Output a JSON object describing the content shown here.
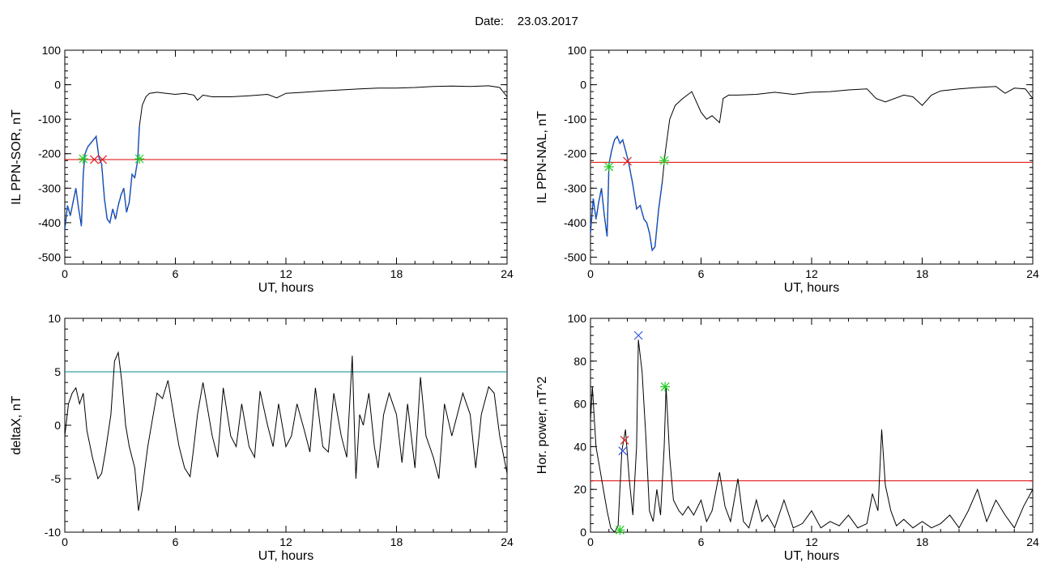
{
  "header": {
    "date_label": "Date:",
    "date_value": "23.03.2017"
  },
  "colors": {
    "axis": "#000000",
    "trace": "#000000",
    "trace_highlight": "#1f5fd6",
    "threshold_red": "#e00000",
    "threshold_teal": "#0a8a8a",
    "marker_green": "#22cc22",
    "marker_red": "#dd2222",
    "marker_blue": "#3355dd"
  },
  "chart_data": [
    {
      "type": "line",
      "xlabel": "UT, hours",
      "ylabel": "IL PPN-SOR, nT",
      "xlim": [
        0,
        24
      ],
      "ylim": [
        -520,
        100
      ],
      "xticks": [
        0,
        6,
        12,
        18,
        24
      ],
      "xtick_labels": [
        "0",
        "6",
        "12",
        "18",
        "24"
      ],
      "yticks": [
        100,
        0,
        -100,
        -200,
        -300,
        -400,
        -500
      ],
      "ytick_labels": [
        "100",
        "0",
        "-100",
        "-200",
        "-300",
        "-400",
        "-500"
      ],
      "threshold": {
        "value": -217,
        "color": "red"
      },
      "highlight_range": [
        0,
        4.1
      ],
      "series": [
        {
          "x": [
            0,
            0.15,
            0.3,
            0.45,
            0.6,
            0.75,
            0.9,
            1.0,
            1.1,
            1.25,
            1.4,
            1.55,
            1.7,
            1.85,
            2.0,
            2.15,
            2.3,
            2.45,
            2.6,
            2.75,
            2.9,
            3.05,
            3.2,
            3.35,
            3.5,
            3.65,
            3.8,
            3.95,
            4.05,
            4.2,
            4.4,
            4.6,
            5,
            5.5,
            6,
            6.5,
            7,
            7.2,
            7.5,
            8,
            9,
            10,
            11,
            11.5,
            12,
            13,
            14,
            15,
            16,
            17,
            18,
            19,
            20,
            21,
            22,
            23,
            23.6,
            24
          ],
          "y": [
            -420,
            -350,
            -380,
            -340,
            -300,
            -360,
            -410,
            -260,
            -200,
            -180,
            -170,
            -160,
            -150,
            -210,
            -230,
            -330,
            -390,
            -400,
            -360,
            -390,
            -350,
            -320,
            -300,
            -370,
            -340,
            -260,
            -270,
            -220,
            -120,
            -60,
            -35,
            -25,
            -22,
            -25,
            -28,
            -25,
            -30,
            -45,
            -30,
            -35,
            -35,
            -32,
            -28,
            -38,
            -25,
            -22,
            -18,
            -15,
            -12,
            -10,
            -10,
            -8,
            -5,
            -4,
            -5,
            -3,
            -8,
            -35
          ]
        }
      ],
      "markers": [
        {
          "x": 1.0,
          "y": -215,
          "color": "green",
          "symbol": "asterisk"
        },
        {
          "x": 1.6,
          "y": -217,
          "color": "red",
          "symbol": "x"
        },
        {
          "x": 2.05,
          "y": -217,
          "color": "red",
          "symbol": "x"
        },
        {
          "x": 4.05,
          "y": -215,
          "color": "green",
          "symbol": "asterisk"
        }
      ]
    },
    {
      "type": "line",
      "xlabel": "UT, hours",
      "ylabel": "IL PPN-NAL, nT",
      "xlim": [
        0,
        24
      ],
      "ylim": [
        -520,
        100
      ],
      "xticks": [
        0,
        6,
        12,
        18,
        24
      ],
      "xtick_labels": [
        "0",
        "6",
        "12",
        "18",
        "24"
      ],
      "yticks": [
        100,
        0,
        -100,
        -200,
        -300,
        -400,
        -500
      ],
      "ytick_labels": [
        "100",
        "0",
        "-100",
        "-200",
        "-300",
        "-400",
        "-500"
      ],
      "threshold": {
        "value": -225,
        "color": "red"
      },
      "highlight_range": [
        0,
        4.0
      ],
      "series": [
        {
          "x": [
            0,
            0.15,
            0.3,
            0.45,
            0.6,
            0.75,
            0.9,
            1.0,
            1.15,
            1.3,
            1.45,
            1.6,
            1.75,
            1.9,
            2.05,
            2.3,
            2.5,
            2.7,
            2.9,
            3.05,
            3.2,
            3.35,
            3.5,
            3.7,
            3.9,
            4.05,
            4.3,
            4.6,
            5,
            5.5,
            6,
            6.3,
            6.6,
            7,
            7.2,
            7.5,
            8,
            9,
            10,
            11,
            12,
            13,
            14,
            15,
            15.5,
            16,
            17,
            17.5,
            18,
            18.5,
            19,
            20,
            21,
            22,
            22.5,
            23,
            23.6,
            24
          ],
          "y": [
            -430,
            -330,
            -390,
            -340,
            -300,
            -380,
            -440,
            -230,
            -190,
            -160,
            -150,
            -170,
            -160,
            -190,
            -220,
            -290,
            -360,
            -350,
            -390,
            -400,
            -430,
            -480,
            -470,
            -360,
            -280,
            -200,
            -100,
            -60,
            -40,
            -20,
            -80,
            -100,
            -90,
            -110,
            -40,
            -30,
            -30,
            -28,
            -22,
            -28,
            -22,
            -20,
            -15,
            -12,
            -40,
            -50,
            -30,
            -35,
            -60,
            -30,
            -18,
            -12,
            -8,
            -5,
            -25,
            -10,
            -12,
            -40
          ]
        }
      ],
      "markers": [
        {
          "x": 1.0,
          "y": -238,
          "color": "green",
          "symbol": "asterisk"
        },
        {
          "x": 2.0,
          "y": -222,
          "color": "red",
          "symbol": "x"
        },
        {
          "x": 4.0,
          "y": -220,
          "color": "green",
          "symbol": "asterisk"
        }
      ]
    },
    {
      "type": "line",
      "xlabel": "UT, hours",
      "ylabel": "deltaX, nT",
      "xlim": [
        0,
        24
      ],
      "ylim": [
        -10,
        10
      ],
      "xticks": [
        0,
        6,
        12,
        18,
        24
      ],
      "xtick_labels": [
        "0",
        "6",
        "12",
        "18",
        "24"
      ],
      "yticks": [
        10,
        5,
        0,
        -5,
        -10
      ],
      "ytick_labels": [
        "10",
        "5",
        "0",
        "-5",
        "-10"
      ],
      "threshold": {
        "value": 5,
        "color": "teal"
      },
      "highlight_range": null,
      "series": [
        {
          "x": [
            0,
            0.2,
            0.4,
            0.6,
            0.8,
            1.0,
            1.2,
            1.5,
            1.8,
            2.0,
            2.2,
            2.5,
            2.7,
            2.9,
            3.1,
            3.3,
            3.5,
            3.8,
            4.0,
            4.2,
            4.5,
            4.8,
            5.0,
            5.3,
            5.6,
            6.0,
            6.2,
            6.5,
            6.8,
            7.0,
            7.2,
            7.5,
            7.8,
            8.0,
            8.3,
            8.6,
            9.0,
            9.3,
            9.6,
            10.0,
            10.3,
            10.6,
            11.0,
            11.3,
            11.6,
            12.0,
            12.3,
            12.6,
            13.0,
            13.3,
            13.6,
            14.0,
            14.3,
            14.6,
            15.0,
            15.3,
            15.6,
            15.8,
            16.0,
            16.2,
            16.5,
            16.8,
            17.0,
            17.3,
            17.6,
            18.0,
            18.3,
            18.6,
            19.0,
            19.3,
            19.6,
            20.0,
            20.3,
            20.6,
            21.0,
            21.3,
            21.6,
            22.0,
            22.3,
            22.6,
            23.0,
            23.3,
            23.6,
            24.0
          ],
          "y": [
            -1,
            2,
            3,
            3.5,
            2,
            3,
            -0.5,
            -3,
            -5,
            -4.5,
            -2.5,
            1,
            6,
            6.8,
            4,
            0,
            -2,
            -4,
            -8,
            -6,
            -2,
            1,
            3,
            2.5,
            4.2,
            0,
            -2,
            -4,
            -4.8,
            -2,
            1,
            4,
            1,
            -1,
            -3,
            3.5,
            -1,
            -2,
            2,
            -2,
            -3,
            3.2,
            0,
            -2,
            2,
            -2,
            -1,
            2,
            -0.5,
            -2.5,
            3.5,
            -2,
            -2.5,
            3,
            -1,
            -3,
            6.5,
            -5,
            1,
            0,
            3,
            -2,
            -4,
            1,
            3,
            1,
            -3.5,
            2,
            -4,
            4.5,
            -1,
            -3,
            -5,
            2,
            -1,
            1,
            3,
            1,
            -4,
            1,
            3.6,
            3,
            -1,
            -4.5
          ]
        }
      ],
      "markers": []
    },
    {
      "type": "line",
      "xlabel": "UT, hours",
      "ylabel": "Hor. power, nT^2",
      "xlim": [
        0,
        24
      ],
      "ylim": [
        0,
        100
      ],
      "xticks": [
        0,
        6,
        12,
        18,
        24
      ],
      "xtick_labels": [
        "0",
        "6",
        "12",
        "18",
        "24"
      ],
      "yticks": [
        100,
        80,
        60,
        40,
        20,
        0
      ],
      "ytick_labels": [
        "100",
        "80",
        "60",
        "40",
        "20",
        "0"
      ],
      "threshold": {
        "value": 24,
        "color": "red"
      },
      "highlight_range": null,
      "series": [
        {
          "x": [
            0,
            0.1,
            0.3,
            0.5,
            0.7,
            0.9,
            1.1,
            1.3,
            1.5,
            1.7,
            1.9,
            2.1,
            2.3,
            2.5,
            2.6,
            2.8,
            3.0,
            3.2,
            3.4,
            3.6,
            3.8,
            4.0,
            4.1,
            4.3,
            4.5,
            4.8,
            5.0,
            5.3,
            5.6,
            6.0,
            6.3,
            6.6,
            7.0,
            7.3,
            7.6,
            8.0,
            8.3,
            8.6,
            9.0,
            9.3,
            9.6,
            10.0,
            10.5,
            11.0,
            11.5,
            12.0,
            12.5,
            13.0,
            13.5,
            14.0,
            14.5,
            15.0,
            15.3,
            15.6,
            15.8,
            16.0,
            16.3,
            16.6,
            17.0,
            17.5,
            18.0,
            18.5,
            19.0,
            19.5,
            20.0,
            20.5,
            21.0,
            21.5,
            22.0,
            22.5,
            23.0,
            23.5,
            24.0
          ],
          "y": [
            52,
            68,
            40,
            30,
            20,
            10,
            2,
            0,
            3,
            38,
            48,
            25,
            8,
            40,
            90,
            75,
            45,
            10,
            5,
            20,
            8,
            40,
            68,
            35,
            15,
            10,
            8,
            12,
            8,
            15,
            5,
            10,
            28,
            12,
            5,
            25,
            5,
            2,
            15,
            5,
            8,
            2,
            15,
            2,
            4,
            10,
            2,
            5,
            3,
            8,
            2,
            4,
            18,
            10,
            48,
            22,
            10,
            3,
            6,
            2,
            5,
            2,
            4,
            8,
            2,
            10,
            20,
            5,
            15,
            8,
            2,
            12,
            20
          ]
        }
      ],
      "markers": [
        {
          "x": 1.6,
          "y": 1,
          "color": "green",
          "symbol": "asterisk"
        },
        {
          "x": 1.75,
          "y": 38,
          "color": "blue",
          "symbol": "x"
        },
        {
          "x": 1.85,
          "y": 43,
          "color": "red",
          "symbol": "x"
        },
        {
          "x": 2.6,
          "y": 92,
          "color": "blue",
          "symbol": "x"
        },
        {
          "x": 4.05,
          "y": 68,
          "color": "green",
          "symbol": "asterisk"
        }
      ]
    }
  ]
}
